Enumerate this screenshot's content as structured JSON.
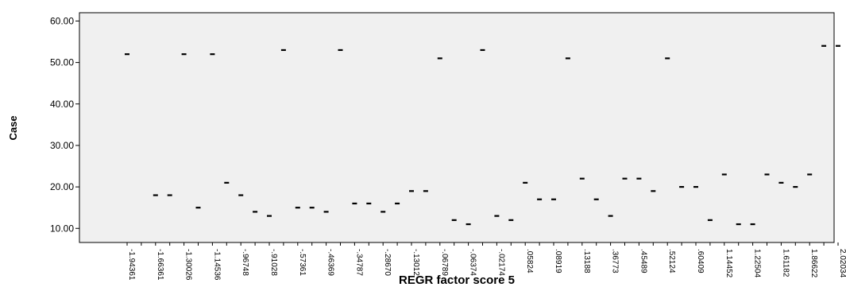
{
  "chart_data": {
    "type": "scatter",
    "xlabel": "REGR factor score   5",
    "ylabel": "Case",
    "ylim": [
      6.6,
      62
    ],
    "y_ticks": [
      "10.00",
      "20.00",
      "30.00",
      "40.00",
      "50.00",
      "60.00"
    ],
    "x_ticks": [
      "-1.94361",
      "-1.66361",
      "-1.30026",
      "-1.14536",
      "-.96748",
      "-.91028",
      "-.57361",
      "-.46369",
      "-.34787",
      "-.28670",
      "-.13012",
      "-.06789",
      "-.06374",
      "-.02174",
      ".05824",
      ".08919",
      ".13188",
      ".36773",
      ".45489",
      ".52124",
      ".60409",
      "1.14452",
      "1.22504",
      "1.61182",
      "1.86622",
      "2.02034"
    ],
    "marker_style": "dash",
    "grid": false,
    "background": "#f0f0f0",
    "marker_color": "#000000",
    "points": [
      {
        "x": "-1.94361",
        "y": 52
      },
      {
        "x": "-1.66361",
        "y": 18
      },
      {
        "x": "-1.66361",
        "y": 18
      },
      {
        "x": "-1.30026",
        "y": 52
      },
      {
        "x": "-1.30026",
        "y": 15
      },
      {
        "x": "-1.14536",
        "y": 52
      },
      {
        "x": "-1.14536",
        "y": 21
      },
      {
        "x": "-.96748",
        "y": 18
      },
      {
        "x": "-.96748",
        "y": 14
      },
      {
        "x": "-.91028",
        "y": 13
      },
      {
        "x": "-.91028",
        "y": 53
      },
      {
        "x": "-.57361",
        "y": 15
      },
      {
        "x": "-.57361",
        "y": 15
      },
      {
        "x": "-.46369",
        "y": 14
      },
      {
        "x": "-.46369",
        "y": 53
      },
      {
        "x": "-.34787",
        "y": 16
      },
      {
        "x": "-.34787",
        "y": 16
      },
      {
        "x": "-.28670",
        "y": 14
      },
      {
        "x": "-.28670",
        "y": 16
      },
      {
        "x": "-.13012",
        "y": 19
      },
      {
        "x": "-.13012",
        "y": 19
      },
      {
        "x": "-.06789",
        "y": 51
      },
      {
        "x": "-.06789",
        "y": 12
      },
      {
        "x": "-.06374",
        "y": 11
      },
      {
        "x": "-.06374",
        "y": 53
      },
      {
        "x": "-.02174",
        "y": 13
      },
      {
        "x": "-.02174",
        "y": 12
      },
      {
        "x": ".05824",
        "y": 21
      },
      {
        "x": ".05824",
        "y": 17
      },
      {
        "x": ".08919",
        "y": 17
      },
      {
        "x": ".08919",
        "y": 51
      },
      {
        "x": ".13188",
        "y": 22
      },
      {
        "x": ".13188",
        "y": 17
      },
      {
        "x": ".36773",
        "y": 13
      },
      {
        "x": ".36773",
        "y": 22
      },
      {
        "x": ".45489",
        "y": 22
      },
      {
        "x": ".45489",
        "y": 19
      },
      {
        "x": ".52124",
        "y": 51
      },
      {
        "x": ".52124",
        "y": 20
      },
      {
        "x": ".60409",
        "y": 20
      },
      {
        "x": ".60409",
        "y": 12
      },
      {
        "x": "1.14452",
        "y": 23
      },
      {
        "x": "1.14452",
        "y": 11
      },
      {
        "x": "1.22504",
        "y": 11
      },
      {
        "x": "1.22504",
        "y": 23
      },
      {
        "x": "1.61182",
        "y": 21
      },
      {
        "x": "1.61182",
        "y": 20
      },
      {
        "x": "1.86622",
        "y": 23
      },
      {
        "x": "1.86622",
        "y": 54
      },
      {
        "x": "2.02034",
        "y": 54
      },
      {
        "x": "2.02034",
        "y": 54
      }
    ]
  }
}
